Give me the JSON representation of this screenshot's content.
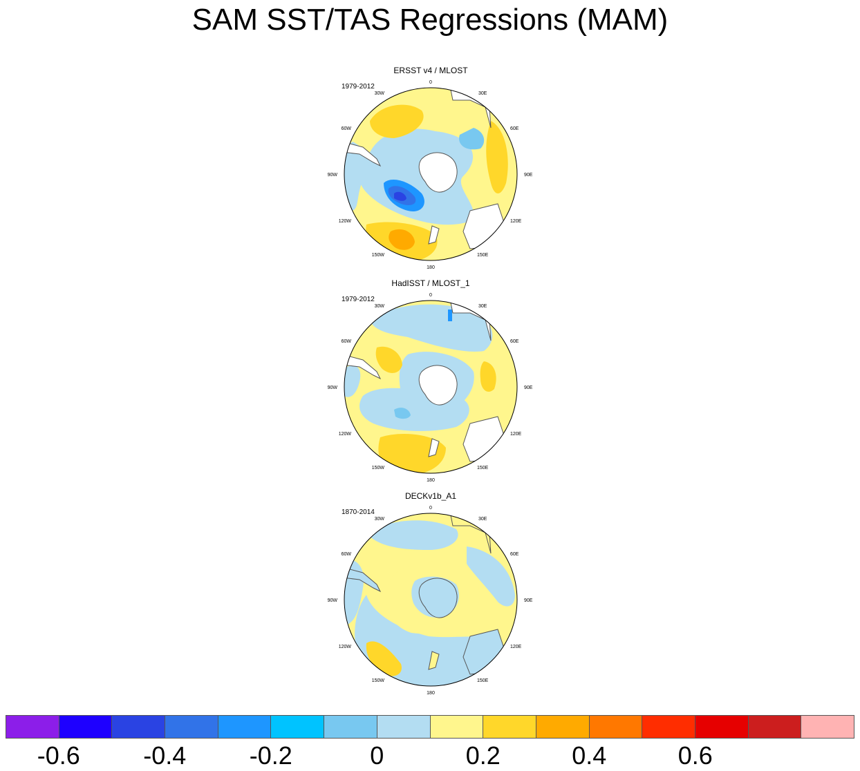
{
  "title": "SAM SST/TAS Regressions (MAM)",
  "panels": [
    {
      "title": "ERSST v4 / MLOST",
      "period": "1979-2012",
      "field": "ersst"
    },
    {
      "title": "HadISST / MLOST_1",
      "period": "1979-2012",
      "field": "hadisst"
    },
    {
      "title": "DECKv1b_A1",
      "period": "1870-2014",
      "field": "deck"
    }
  ],
  "lon_labels": [
    "0",
    "30E",
    "60E",
    "90E",
    "120E",
    "150E",
    "180",
    "150W",
    "120W",
    "90W",
    "60W",
    "30W"
  ],
  "colorbar": {
    "colors": [
      "#8c1ee9",
      "#1e00ff",
      "#2a43e3",
      "#3173e8",
      "#1e96ff",
      "#00c3ff",
      "#78c8f0",
      "#b3ddf2",
      "#fff68d",
      "#ffd72a",
      "#ffaa00",
      "#ff7800",
      "#ff2d00",
      "#e60000",
      "#cc1e1e",
      "#ffb3b3"
    ],
    "tick_labels": [
      "-0.6",
      "-0.4",
      "-0.2",
      "0",
      "0.2",
      "0.4",
      "0.6"
    ]
  },
  "colors": {
    "land": "#ffffff",
    "coast": "#555555",
    "missing": "#ffffff"
  }
}
